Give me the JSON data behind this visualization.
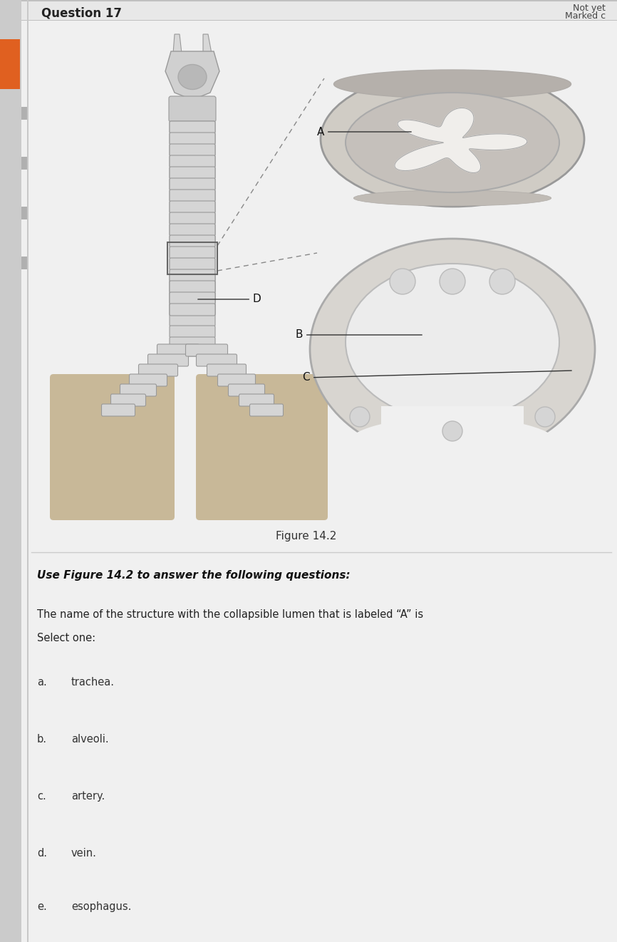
{
  "page_bg": "#cbcbcb",
  "card_bg": "#f2f2f2",
  "question_label": "Question 17",
  "top_right_text1": "Not yet",
  "top_right_text2": "Marked c",
  "figure_label": "Figure 14.2",
  "instruction_text": "Use Figure 14.2 to answer the following questions:",
  "question_line1": "The name of the structure with the collapsible lumen that is labeled “A” is",
  "question_line2": "Select one:",
  "options": [
    {
      "label": "a.",
      "text": "trachea."
    },
    {
      "label": "b.",
      "text": "alveoli."
    },
    {
      "label": "c.",
      "text": "artery."
    },
    {
      "label": "d.",
      "text": "vein."
    },
    {
      "label": "e.",
      "text": "esophagus."
    }
  ],
  "orange_sidebar": "#e05a00",
  "left_line_color": "#aaaaaa",
  "header_line_color": "#bbbbbb",
  "text_dark": "#222222",
  "text_mid": "#444444",
  "figure_bg": "#f2f2f2",
  "trachea_ring_color": "#c8c8c8",
  "trachea_edge_color": "#888888",
  "cross_section_outer": "#c8c5c0",
  "cross_section_inner": "#dedad5",
  "lumen_color": "#f5f5f5"
}
